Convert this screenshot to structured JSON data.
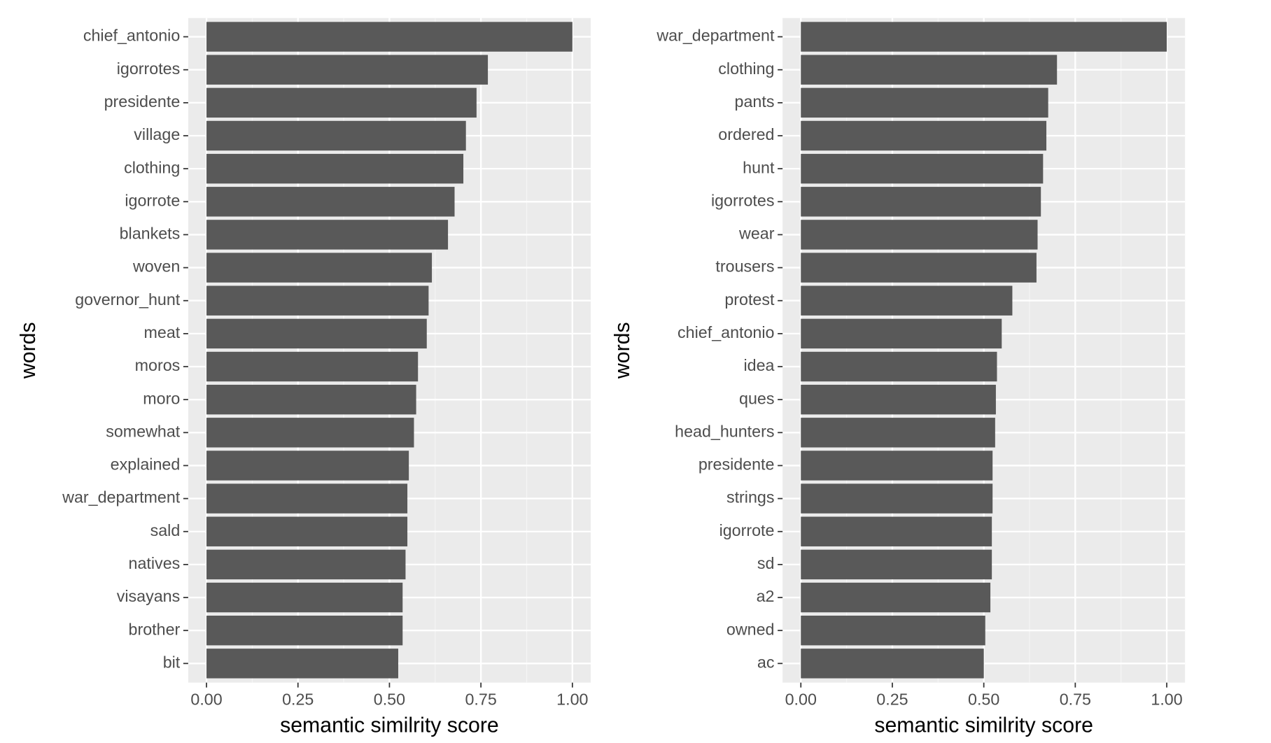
{
  "chart_data": [
    {
      "type": "bar",
      "orientation": "horizontal",
      "color": "#595959",
      "grid": true,
      "xlabel": "semantic similrity score",
      "ylabel": "words",
      "categories": [
        "chief_antonio",
        "igorrotes",
        "presidente",
        "village",
        "clothing",
        "igorrote",
        "blankets",
        "woven",
        "governor_hunt",
        "meat",
        "moros",
        "moro",
        "somewhat",
        "explained",
        "war_department",
        "sald",
        "natives",
        "visayans",
        "brother",
        "bit"
      ],
      "values": [
        1.0,
        0.769,
        0.738,
        0.709,
        0.702,
        0.678,
        0.66,
        0.616,
        0.607,
        0.602,
        0.578,
        0.573,
        0.567,
        0.553,
        0.549,
        0.549,
        0.544,
        0.536,
        0.536,
        0.524
      ],
      "xlim": [
        -0.05,
        1.05
      ],
      "xticks": [
        {
          "value": 0,
          "label": "0.00"
        },
        {
          "value": 0.25,
          "label": "0.25"
        },
        {
          "value": 0.5,
          "label": "0.50"
        },
        {
          "value": 0.75,
          "label": "0.75"
        },
        {
          "value": 1,
          "label": "1.00"
        }
      ]
    },
    {
      "type": "bar",
      "orientation": "horizontal",
      "color": "#595959",
      "grid": true,
      "xlabel": "semantic similrity score",
      "ylabel": "words",
      "categories": [
        "war_department",
        "clothing",
        "pants",
        "ordered",
        "hunt",
        "igorrotes",
        "wear",
        "trousers",
        "protest",
        "chief_antonio",
        "idea",
        "ques",
        "head_hunters",
        "presidente",
        "strings",
        "igorrote",
        "sd",
        "a2",
        "owned",
        "ac"
      ],
      "values": [
        1.0,
        0.7,
        0.676,
        0.671,
        0.662,
        0.656,
        0.647,
        0.644,
        0.578,
        0.549,
        0.536,
        0.533,
        0.531,
        0.524,
        0.524,
        0.522,
        0.522,
        0.518,
        0.504,
        0.5
      ],
      "xlim": [
        -0.05,
        1.05
      ],
      "xticks": [
        {
          "value": 0,
          "label": "0.00"
        },
        {
          "value": 0.25,
          "label": "0.25"
        },
        {
          "value": 0.5,
          "label": "0.50"
        },
        {
          "value": 0.75,
          "label": "0.75"
        },
        {
          "value": 1,
          "label": "1.00"
        }
      ]
    }
  ]
}
